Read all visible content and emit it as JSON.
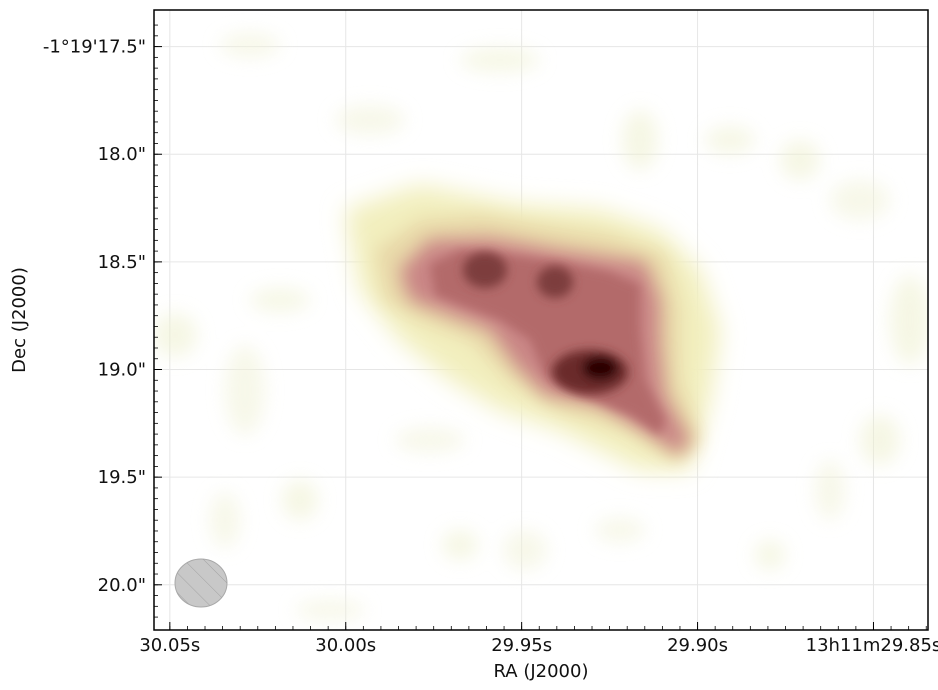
{
  "chart_data": {
    "type": "heatmap",
    "title": "",
    "xlabel": "RA (J2000)",
    "ylabel": "Dec (J2000)",
    "grid": true,
    "colormap": "pink-red",
    "x_unit": "seconds of RA",
    "x_ticks": [
      {
        "value": 30.05,
        "label": "30.05s"
      },
      {
        "value": 30.0,
        "label": "30.00s"
      },
      {
        "value": 29.95,
        "label": "29.95s"
      },
      {
        "value": 29.9,
        "label": "29.90s"
      },
      {
        "value": 29.85,
        "label": "13h11m29.85s"
      }
    ],
    "y_unit": "arcsec (Dec -1°19')",
    "y_ticks": [
      {
        "value": 17.5,
        "label": "-1°19'17.5\""
      },
      {
        "value": 18.0,
        "label": "18.0\""
      },
      {
        "value": 18.5,
        "label": "18.5\""
      },
      {
        "value": 19.0,
        "label": "19.0\""
      },
      {
        "value": 19.5,
        "label": "19.5\""
      },
      {
        "value": 20.0,
        "label": "20.0\""
      }
    ],
    "xlim": [
      30.0545,
      29.8345
    ],
    "ylim": [
      20.21,
      17.33
    ],
    "emission_components": [
      {
        "ra": 29.901,
        "dec": 18.99,
        "intensity": 1.0
      },
      {
        "ra": 29.932,
        "dec": 18.6,
        "intensity": 0.55
      },
      {
        "ra": 29.952,
        "dec": 18.55,
        "intensity": 0.48
      },
      {
        "ra": 29.926,
        "dec": 18.73,
        "intensity": 0.3
      },
      {
        "ra": 29.915,
        "dec": 19.12,
        "intensity": 0.35
      },
      {
        "ra": 29.894,
        "dec": 19.28,
        "intensity": 0.3
      }
    ],
    "beam": {
      "ra": 30.04,
      "dec": 19.99,
      "major_arcsec": 0.24,
      "minor_arcsec": 0.22,
      "color": "#c8c8c8"
    }
  }
}
